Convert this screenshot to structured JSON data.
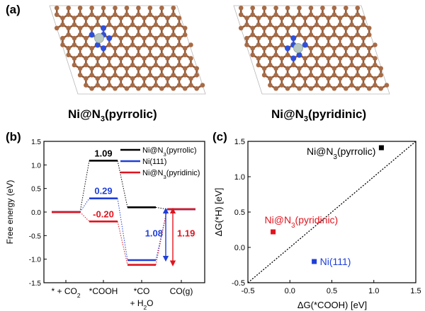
{
  "panels": {
    "a": {
      "label": "(a)",
      "structures": [
        {
          "name": "Ni@N",
          "sub": "3",
          "suffix": "(pyrrolic)"
        },
        {
          "name": "Ni@N",
          "sub": "3",
          "suffix": "(pyridinic)"
        }
      ]
    },
    "b": {
      "label": "(b)"
    },
    "c": {
      "label": "(c)"
    }
  },
  "chart_data": [
    {
      "type": "line",
      "ylabel": "Free energy (eV)",
      "ylim": [
        -1.5,
        1.5
      ],
      "yticks": [
        "-1.5",
        "-1.0",
        "-0.5",
        "0.0",
        "0.5",
        "1.0",
        "1.5"
      ],
      "categories": [
        {
          "line1": "* + CO",
          "sub": "2",
          "line2": ""
        },
        {
          "line1": "*COOH",
          "sub": "",
          "line2": ""
        },
        {
          "line1": "*CO",
          "sub": "",
          "line2": "+ H",
          "line2sub": "2",
          "line2end": "O"
        },
        {
          "line1": "CO(g)",
          "sub": "",
          "line2": ""
        }
      ],
      "legend": [
        {
          "name": "Ni@N",
          "sub": "3",
          "suffix": "(pyrrolic)",
          "color": "#000000"
        },
        {
          "name": "Ni(111)",
          "sub": "",
          "suffix": "",
          "color": "#1f3fd8"
        },
        {
          "name": "Ni@N",
          "sub": "3",
          "suffix": "(pyridinic)",
          "color": "#e0141e"
        }
      ],
      "series": [
        {
          "color": "#000000",
          "values": [
            0,
            1.09,
            0.1,
            0.06
          ]
        },
        {
          "color": "#1f3fd8",
          "values": [
            0,
            0.29,
            -1.02,
            0.06
          ]
        },
        {
          "color": "#e0141e",
          "values": [
            0,
            -0.2,
            -1.12,
            0.06
          ]
        }
      ],
      "value_labels": [
        {
          "text": "1.09",
          "color": "#000000",
          "x": 1,
          "y": 1.09
        },
        {
          "text": "0.29",
          "color": "#1f3fd8",
          "x": 1,
          "y": 0.29
        },
        {
          "text": "-0.20",
          "color": "#e0141e",
          "x": 1,
          "y": -0.2
        }
      ],
      "gaps": [
        {
          "text": "1.08",
          "color": "#1f3fd8",
          "from": -1.02,
          "to": 0.06
        },
        {
          "text": "1.19",
          "color": "#e0141e",
          "from": -1.12,
          "to": 0.06
        }
      ]
    },
    {
      "type": "scatter",
      "xlabel": "ΔG(*COOH) [eV]",
      "ylabel": "ΔG(*H) [eV]",
      "xlim": [
        -0.5,
        1.5
      ],
      "ylim": [
        -0.5,
        1.5
      ],
      "xticks": [
        "-0.5",
        "0.0",
        "0.5",
        "1.0",
        "1.5"
      ],
      "yticks": [
        "-0.5",
        "0.0",
        "0.5",
        "1.0",
        "1.5"
      ],
      "diagonal": true,
      "points": [
        {
          "name": "Ni@N",
          "sub": "3",
          "suffix": "(pyrrolic)",
          "x": 1.09,
          "y": 1.41,
          "color": "#000000"
        },
        {
          "name": "Ni@N",
          "sub": "3",
          "suffix": "(pyridinic)",
          "x": -0.2,
          "y": 0.22,
          "color": "#e0141e"
        },
        {
          "name": "Ni(111)",
          "sub": "",
          "suffix": "",
          "x": 0.29,
          "y": -0.2,
          "color": "#1f3fd8"
        }
      ]
    }
  ]
}
